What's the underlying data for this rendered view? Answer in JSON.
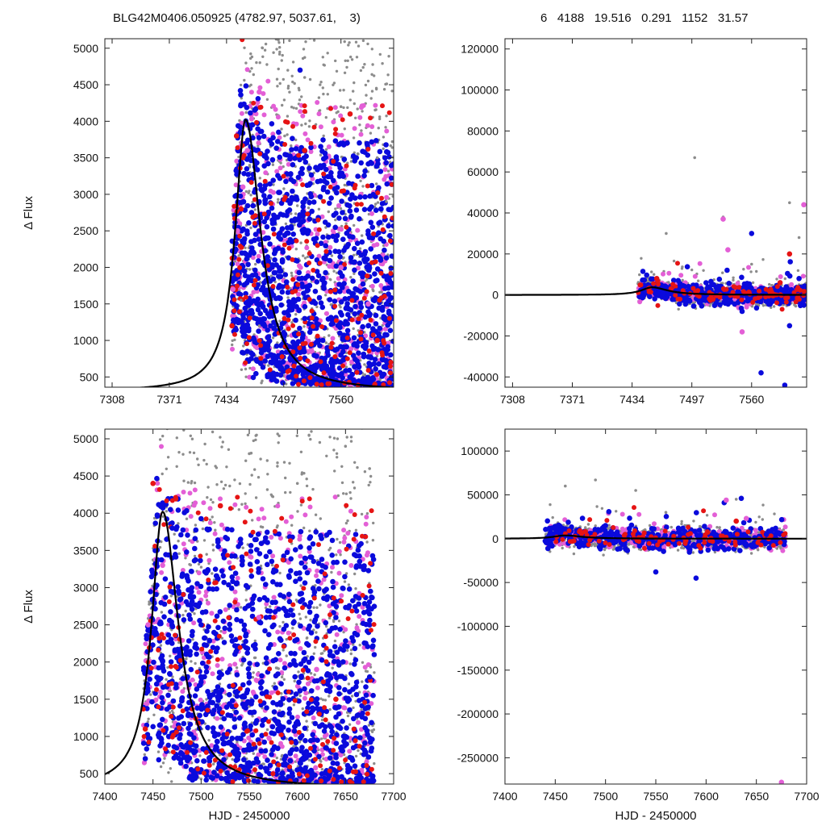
{
  "header": {
    "left": "BLG42M0406.050925 (4782.97, 5037.61,    3)",
    "right": "6   4188   19.516   0.291   1152   31.57"
  },
  "colors": {
    "curve": "#000000",
    "gray": "#8c8c8c",
    "blue": "#0a0adc",
    "red": "#e61414",
    "magenta": "#e35fd6"
  },
  "chart_data": [
    {
      "type": "scatter",
      "panel": "top-left",
      "ylabel": "Δ Flux",
      "xlabel": "",
      "xlim": [
        7300,
        7618
      ],
      "ylim": [
        360,
        5130
      ],
      "xticks": [
        "7308",
        "7371",
        "7434",
        "7497",
        "7560"
      ],
      "yticks": [
        "500",
        "1000",
        "1500",
        "2000",
        "2500",
        "3000",
        "3500",
        "4000",
        "4500",
        "5000"
      ],
      "model": {
        "t0": 7455,
        "peak": 4020,
        "base": 300,
        "tau_rise": 14,
        "tau_decay": 20
      },
      "series": [
        {
          "color": "gray",
          "points": [
            [
              7440,
              1900
            ],
            [
              7450,
              1550
            ],
            [
              7470,
              1200
            ],
            [
              7498,
              3800
            ],
            [
              7520,
              4600
            ],
            [
              7560,
              4200
            ],
            [
              7600,
              3500
            ],
            [
              7610,
              2900
            ]
          ]
        },
        {
          "color": "blue",
          "points": [
            [
              7460,
              3900
            ],
            [
              7470,
              2900
            ],
            [
              7480,
              2400
            ],
            [
              7500,
              1800
            ],
            [
              7520,
              1300
            ],
            [
              7540,
              1000
            ],
            [
              7560,
              800
            ],
            [
              7590,
              1200
            ],
            [
              7610,
              1500
            ],
            [
              7515,
              4700
            ],
            [
              7560,
              3700
            ]
          ]
        },
        {
          "color": "magenta",
          "points": [
            [
              7441,
              1700
            ],
            [
              7446,
              2500
            ],
            [
              7452,
              3100
            ],
            [
              7457,
              3600
            ],
            [
              7470,
              4400
            ],
            [
              7560,
              2000
            ],
            [
              7590,
              1500
            ]
          ]
        },
        {
          "color": "red",
          "points": [
            [
              7440,
              1200
            ],
            [
              7445,
              3800
            ],
            [
              7450,
              2800
            ],
            [
              7520,
              3600
            ],
            [
              7570,
              4100
            ],
            [
              7600,
              1000
            ]
          ]
        }
      ]
    },
    {
      "type": "scatter",
      "panel": "top-right",
      "ylabel": "",
      "xlabel": "",
      "xlim": [
        7300,
        7618
      ],
      "ylim": [
        -45000,
        125000
      ],
      "xticks": [
        "7308",
        "7371",
        "7434",
        "7497",
        "7560"
      ],
      "yticks": [
        "-40000",
        "-20000",
        "0",
        "20000",
        "40000",
        "60000",
        "80000",
        "100000",
        "120000"
      ],
      "model": {
        "t0": 7455,
        "peak": 3720,
        "base": 0,
        "tau_rise": 14,
        "tau_decay": 20
      },
      "series": [
        {
          "color": "gray",
          "points": [
            [
              7470,
              30000
            ],
            [
              7500,
              67000
            ],
            [
              7530,
              38000
            ],
            [
              7560,
              15000
            ],
            [
              7600,
              45000
            ],
            [
              7610,
              28000
            ]
          ]
        },
        {
          "color": "blue",
          "points": [
            [
              7480,
              2000
            ],
            [
              7520,
              5000
            ],
            [
              7550,
              -8000
            ],
            [
              7560,
              30000
            ],
            [
              7570,
              -38000
            ],
            [
              7595,
              -44000
            ],
            [
              7600,
              -15000
            ],
            [
              7610,
              8000
            ]
          ]
        },
        {
          "color": "magenta",
          "points": [
            [
              7530,
              37000
            ],
            [
              7535,
              22000
            ],
            [
              7615,
              44000
            ],
            [
              7550,
              -18000
            ]
          ]
        },
        {
          "color": "red",
          "points": [
            [
              7460,
              8000
            ],
            [
              7600,
              20000
            ],
            [
              7590,
              6000
            ]
          ]
        }
      ]
    },
    {
      "type": "scatter",
      "panel": "bottom-left",
      "ylabel": "Δ Flux",
      "xlabel": "HJD - 2450000",
      "xlim": [
        7400,
        7700
      ],
      "ylim": [
        360,
        5130
      ],
      "xticks": [
        "7400",
        "7450",
        "7500",
        "7550",
        "7600",
        "7650",
        "7700"
      ],
      "yticks": [
        "500",
        "1000",
        "1500",
        "2000",
        "2500",
        "3000",
        "3500",
        "4000",
        "4500",
        "5000"
      ],
      "model": {
        "t0": 7460,
        "peak": 4020,
        "base": 300,
        "tau_rise": 14,
        "tau_decay": 20
      },
      "series": [
        {
          "color": "gray",
          "points": [
            [
              7550,
              4800
            ],
            [
              7600,
              4400
            ],
            [
              7650,
              4900
            ],
            [
              7675,
              4600
            ]
          ]
        },
        {
          "color": "blue",
          "points": [
            [
              7470,
              3800
            ],
            [
              7500,
              2500
            ],
            [
              7550,
              1800
            ],
            [
              7600,
              1200
            ],
            [
              7650,
              1000
            ],
            [
              7675,
              1800
            ]
          ]
        },
        {
          "color": "magenta",
          "points": [
            [
              7445,
              2500
            ],
            [
              7460,
              3300
            ],
            [
              7560,
              2600
            ],
            [
              7620,
              1900
            ]
          ]
        },
        {
          "color": "red",
          "points": [
            [
              7442,
              1100
            ],
            [
              7450,
              4400
            ],
            [
              7520,
              4100
            ],
            [
              7640,
              1500
            ]
          ]
        }
      ]
    },
    {
      "type": "scatter",
      "panel": "bottom-right",
      "ylabel": "",
      "xlabel": "HJD - 2450000",
      "xlim": [
        7400,
        7700
      ],
      "ylim": [
        -280000,
        125000
      ],
      "xticks": [
        "7400",
        "7450",
        "7500",
        "7550",
        "7600",
        "7650",
        "7700"
      ],
      "yticks": [
        "-250000",
        "-200000",
        "-150000",
        "-100000",
        "-50000",
        "0",
        "50000",
        "100000"
      ],
      "model": {
        "t0": 7460,
        "peak": 3720,
        "base": 0,
        "tau_rise": 14,
        "tau_decay": 20
      },
      "series": [
        {
          "color": "gray",
          "points": [
            [
              7460,
              60000
            ],
            [
              7490,
              67000
            ],
            [
              7530,
              55000
            ],
            [
              7560,
              30000
            ],
            [
              7630,
              45000
            ]
          ]
        },
        {
          "color": "blue",
          "points": [
            [
              7500,
              15000
            ],
            [
              7550,
              -38000
            ],
            [
              7590,
              -45000
            ],
            [
              7635,
              46000
            ],
            [
              7660,
              5000
            ]
          ]
        },
        {
          "color": "magenta",
          "points": [
            [
              7620,
              44000
            ],
            [
              7640,
              23000
            ],
            [
              7675,
              -278000
            ]
          ]
        },
        {
          "color": "red",
          "points": [
            [
              7480,
              8000
            ],
            [
              7630,
              20000
            ]
          ]
        }
      ]
    }
  ]
}
